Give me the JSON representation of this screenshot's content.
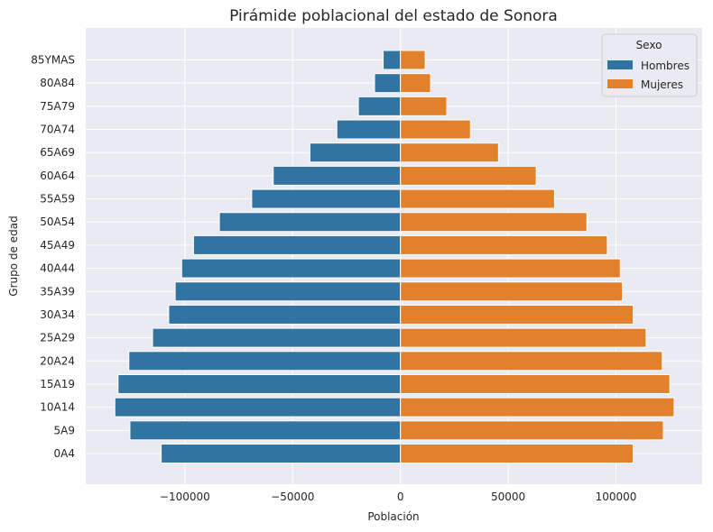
{
  "chart_data": {
    "type": "bar",
    "orientation": "horizontal-population-pyramid",
    "title": "Pirámide poblacional del estado de Sonora",
    "xlabel": "Población",
    "ylabel": "Grupo de edad",
    "xlim": [
      -146000,
      140000
    ],
    "xticks": [
      -100000,
      -50000,
      0,
      50000,
      100000
    ],
    "xtick_labels": [
      "−100000",
      "−50000",
      "0",
      "50000",
      "100000"
    ],
    "grid": true,
    "background": "#eaeaf2",
    "legend": {
      "title": "Sexo",
      "position": "top-right"
    },
    "categories": [
      "0A4",
      "5A9",
      "10A14",
      "15A19",
      "20A24",
      "25A29",
      "30A34",
      "35A39",
      "40A44",
      "45A49",
      "50A54",
      "55A59",
      "60A64",
      "65A69",
      "70A74",
      "75A79",
      "80A84",
      "85YMAS"
    ],
    "series": [
      {
        "name": "Hombres",
        "color": "#3274a1",
        "values": [
          -111000,
          -125500,
          -132500,
          -131000,
          -126000,
          -115000,
          -107500,
          -104500,
          -101500,
          -96000,
          -84000,
          -69000,
          -59000,
          -42000,
          -29500,
          -19500,
          -12000,
          -8000
        ]
      },
      {
        "name": "Mujeres",
        "color": "#e1812c",
        "values": [
          108000,
          122000,
          127000,
          125000,
          121500,
          114000,
          108000,
          103000,
          102000,
          96000,
          86500,
          71500,
          63000,
          45500,
          32500,
          21500,
          14000,
          11500
        ]
      }
    ]
  }
}
